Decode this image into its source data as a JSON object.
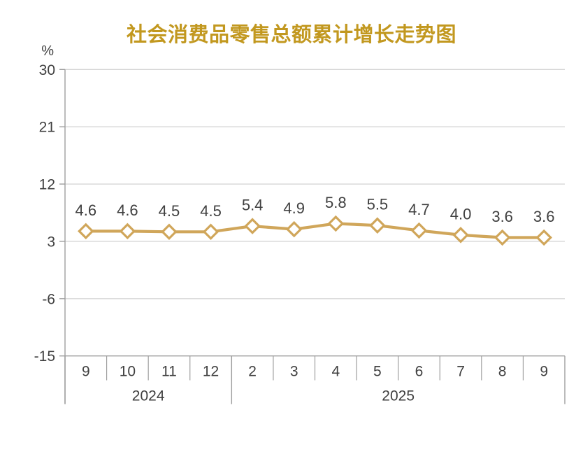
{
  "chart_data": {
    "type": "line",
    "title": "社会消费品零售总额累计增长走势图",
    "ylabel": "%",
    "ylim": [
      -15,
      30
    ],
    "yticks": [
      30,
      21,
      12,
      3,
      -6,
      -15
    ],
    "categories": [
      "9",
      "10",
      "11",
      "12",
      "2",
      "3",
      "4",
      "5",
      "6",
      "7",
      "8",
      "9"
    ],
    "values": [
      4.6,
      4.6,
      4.5,
      4.5,
      5.4,
      4.9,
      5.8,
      5.5,
      4.7,
      4.0,
      3.6,
      3.6
    ],
    "data_labels": [
      "4.6",
      "4.6",
      "4.5",
      "4.5",
      "5.4",
      "4.9",
      "5.8",
      "5.5",
      "4.7",
      "4.0",
      "3.6",
      "3.6"
    ],
    "x_groups": [
      {
        "label": "2024",
        "span": 4
      },
      {
        "label": "2025",
        "span": 8
      }
    ],
    "grid": true,
    "legend": false,
    "marker": "diamond"
  },
  "colors": {
    "title": "#C2981F",
    "line": "#D0A65A",
    "marker_fill": "#FFFFFF",
    "grid": "#D6D6D6",
    "axis": "#9E9E9E",
    "text": "#404040"
  }
}
